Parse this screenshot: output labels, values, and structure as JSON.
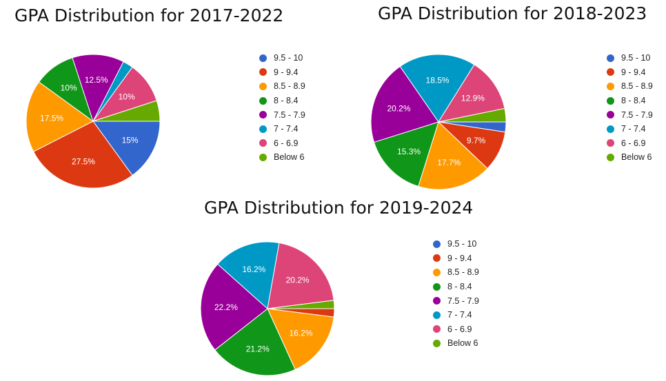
{
  "chart_data": [
    {
      "type": "pie",
      "title": "GPA Distribution for 2017-2022",
      "categories": [
        "9.5 - 10",
        "9 - 9.4",
        "8.5 - 8.9",
        "8 - 8.4",
        "7.5 - 7.9",
        "7 - 7.4",
        "6 - 6.9",
        "Below 6"
      ],
      "values": [
        15,
        27.5,
        17.5,
        10,
        12.5,
        2.5,
        10,
        5
      ],
      "labels": [
        "15%",
        "27.5%",
        "17.5%",
        "10%",
        "12.5%",
        "",
        "10%",
        ""
      ],
      "colors": [
        "#3366cc",
        "#dc3912",
        "#ff9900",
        "#109618",
        "#990099",
        "#0099c6",
        "#dd4477",
        "#66aa00"
      ],
      "legend_position": "right"
    },
    {
      "type": "pie",
      "title": "GPA Distribution for 2018-2023",
      "categories": [
        "9.5 - 10",
        "9 - 9.4",
        "8.5 - 8.9",
        "8 - 8.4",
        "7.5 - 7.9",
        "7 - 7.4",
        "6 - 6.9",
        "Below 6"
      ],
      "values": [
        2.4,
        9.7,
        17.7,
        15.3,
        20.2,
        18.5,
        12.9,
        3.2
      ],
      "labels": [
        "",
        "9.7%",
        "17.7%",
        "15.3%",
        "20.2%",
        "18.5%",
        "12.9%",
        ""
      ],
      "colors": [
        "#3366cc",
        "#dc3912",
        "#ff9900",
        "#109618",
        "#990099",
        "#0099c6",
        "#dd4477",
        "#66aa00"
      ],
      "legend_position": "right"
    },
    {
      "type": "pie",
      "title": "GPA Distribution for 2019-2024",
      "categories": [
        "9.5 - 10",
        "9 - 9.4",
        "8.5 - 8.9",
        "8 - 8.4",
        "7.5 - 7.9",
        "7 - 7.4",
        "6 - 6.9",
        "Below 6"
      ],
      "values": [
        0,
        2,
        16.2,
        21.2,
        22.2,
        16.2,
        20.2,
        2
      ],
      "labels": [
        "",
        "",
        "16.2%",
        "21.2%",
        "22.2%",
        "16.2%",
        "20.2%",
        ""
      ],
      "colors": [
        "#3366cc",
        "#dc3912",
        "#ff9900",
        "#109618",
        "#990099",
        "#0099c6",
        "#dd4477",
        "#66aa00"
      ],
      "legend_position": "right"
    }
  ]
}
